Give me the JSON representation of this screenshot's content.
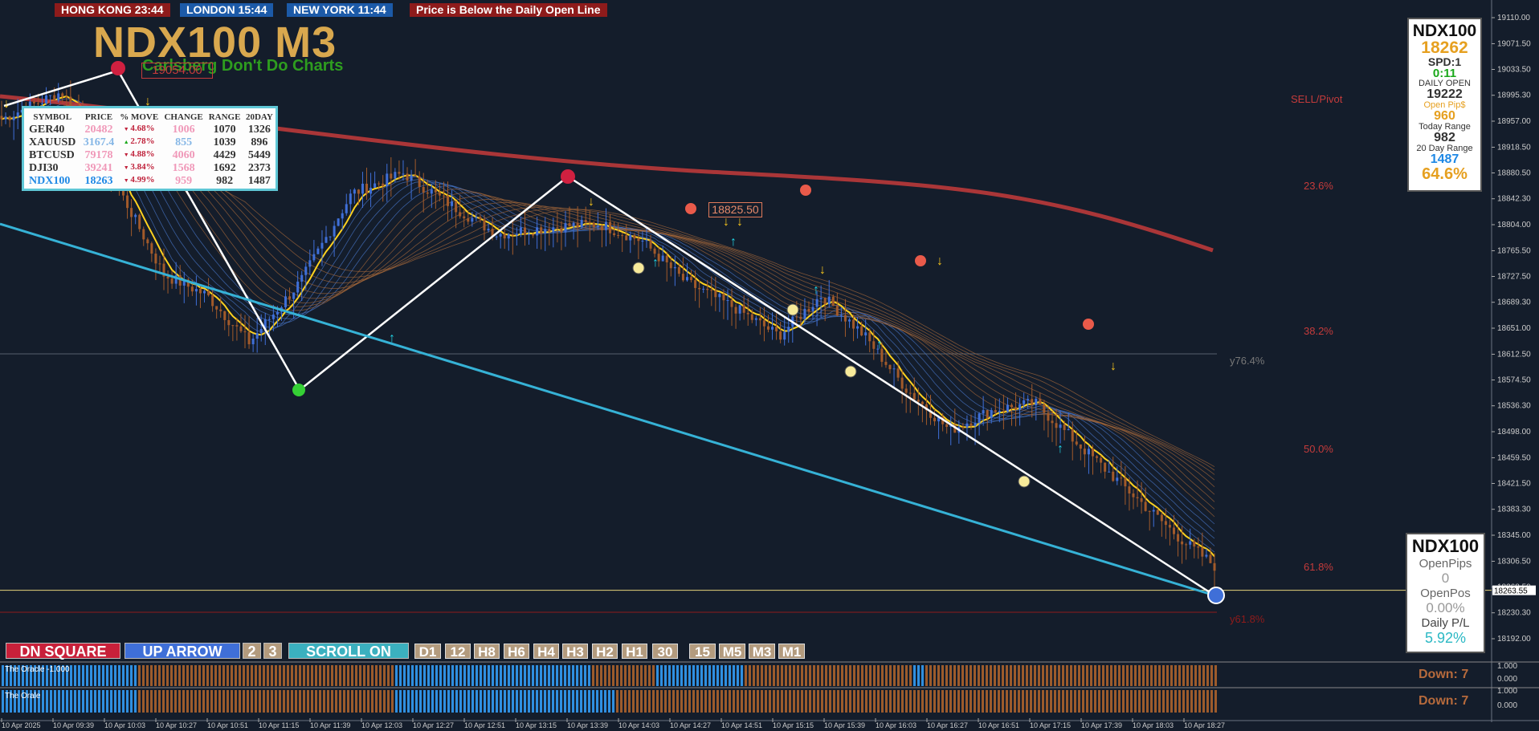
{
  "clocks": [
    {
      "label": "HONG KONG 23:44",
      "bg": "#8e1b1b"
    },
    {
      "label": "LONDON  15:44",
      "bg": "#1c5aa8"
    },
    {
      "label": "NEW YORK  11:44",
      "bg": "#1c5aa8"
    },
    {
      "label": "Price is Below the Daily Open Line",
      "bg": "#8e1b1b"
    }
  ],
  "title": "NDX100 M3",
  "subtitle": "Carlsberg Don't Do Charts",
  "high_label": "19054.00",
  "pivot_label": "18825.50",
  "symbol_table": {
    "headers": [
      "SYMBOL",
      "PRICE",
      "% MOVE",
      "CHANGE",
      "RANGE",
      "20DAY"
    ],
    "rows": [
      {
        "symbol": "GER40",
        "price": "20482",
        "move": "4.68%",
        "change": "1006",
        "range": "1070",
        "day20": "1326",
        "price_color": "#f099b9",
        "change_color": "#f099b9",
        "arrow": "down"
      },
      {
        "symbol": "XAUUSD",
        "price": "3167.4",
        "move": "2.78%",
        "change": "855",
        "range": "1039",
        "day20": "896",
        "price_color": "#86b7e6",
        "change_color": "#86b7e6",
        "arrow": "up"
      },
      {
        "symbol": "BTCUSD",
        "price": "79178",
        "move": "4.88%",
        "change": "4060",
        "range": "4429",
        "day20": "5449",
        "price_color": "#f099b9",
        "change_color": "#f099b9",
        "arrow": "down"
      },
      {
        "symbol": "DJI30",
        "price": "39241",
        "move": "3.84%",
        "change": "1568",
        "range": "1692",
        "day20": "2373",
        "price_color": "#f099b9",
        "change_color": "#f099b9",
        "arrow": "down"
      },
      {
        "symbol": "NDX100",
        "price": "18263",
        "move": "4.99%",
        "change": "959",
        "range": "982",
        "day20": "1487",
        "price_color": "#1e88e5",
        "change_color": "#f099b9",
        "arrow": "down"
      }
    ]
  },
  "info_box": {
    "symbol": "NDX100",
    "price": "18262",
    "spread": "SPD:1",
    "timer": "0:11",
    "daily_open_label": "DAILY OPEN",
    "daily_open": "19222",
    "open_pips_label": "Open Pip$",
    "open_pips": "960",
    "today_range_label": "Today Range",
    "today_range": "982",
    "range20_label": "20 Day Range",
    "range20": "1487",
    "pct": "64.6%"
  },
  "bottom_box": {
    "symbol": "NDX100",
    "open_pips_label": "OpenPips",
    "open_pips": "0",
    "open_pos_label": "OpenPos",
    "open_pos": "0.00%",
    "daily_pl_label": "Daily P/L",
    "daily_pl": "5.92%"
  },
  "fib_labels": [
    {
      "label": "SELL/Pivot",
      "y": 124
    },
    {
      "label": "23.6%",
      "y": 232
    },
    {
      "label": "38.2%",
      "y": 413
    },
    {
      "label": "50.0%",
      "y": 560
    },
    {
      "label": "61.8%",
      "y": 707
    }
  ],
  "side_labels": {
    "y764": "y76.4%",
    "y618": "y61.8%"
  },
  "price_axis": [
    "19110.00",
    "19071.50",
    "19033.50",
    "18995.30",
    "18957.00",
    "18918.50",
    "18880.50",
    "18842.30",
    "18804.00",
    "18765.50",
    "18727.50",
    "18689.30",
    "18651.00",
    "18612.50",
    "18574.50",
    "18536.30",
    "18498.00",
    "18459.50",
    "18421.50",
    "18383.30",
    "18345.00",
    "18306.50",
    "18268.50",
    "18230.30",
    "18192.00"
  ],
  "current_price": "18263.55",
  "time_axis": [
    "10 Apr 2025",
    "10 Apr 09:39",
    "10 Apr 10:03",
    "10 Apr 10:27",
    "10 Apr 10:51",
    "10 Apr 11:15",
    "10 Apr 11:39",
    "10 Apr 12:03",
    "10 Apr 12:27",
    "10 Apr 12:51",
    "10 Apr 13:15",
    "10 Apr 13:39",
    "10 Apr 14:03",
    "10 Apr 14:27",
    "10 Apr 14:51",
    "10 Apr 15:15",
    "10 Apr 15:39",
    "10 Apr 16:03",
    "10 Apr 16:27",
    "10 Apr 16:51",
    "10 Apr 17:15",
    "10 Apr 17:39",
    "10 Apr 18:03",
    "10 Apr 18:27"
  ],
  "buttons": [
    {
      "label": "DN SQUARE",
      "bg": "#c8203a"
    },
    {
      "label": "UP ARROW",
      "bg": "#3f6fd8"
    },
    {
      "label": "2",
      "bg": "#b39b7e"
    },
    {
      "label": "3",
      "bg": "#b39b7e"
    },
    {
      "label": "SCROLL ON",
      "bg": "#3bb0bf"
    }
  ],
  "timeframes": [
    "D1",
    "12",
    "H8",
    "H6",
    "H4",
    "H3",
    "H2",
    "H1",
    "30",
    "15",
    "M5",
    "M3",
    "M1"
  ],
  "indicators": [
    {
      "label": "The Oracle -1.000",
      "down": "Down: 7",
      "axis": [
        "1.000",
        "0.000"
      ]
    },
    {
      "label": "The Orale",
      "down": "Down: 7",
      "axis": [
        "1.000",
        "0.000"
      ]
    }
  ],
  "colors": {
    "bg": "#141d2b",
    "bull": "#3f6fd8",
    "bear": "#a25a2a",
    "ma_slow": "#c43b3b",
    "fast": "#ffd21f",
    "trend": "#36b2d6"
  }
}
